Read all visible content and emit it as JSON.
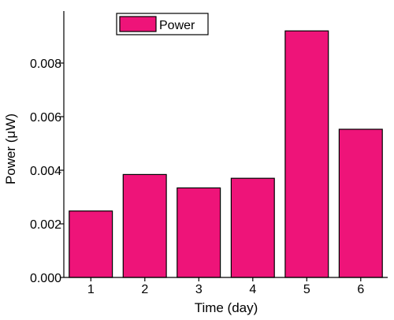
{
  "chart_data": {
    "type": "bar",
    "categories": [
      "1",
      "2",
      "3",
      "4",
      "5",
      "6"
    ],
    "series": [
      {
        "name": "Power",
        "values": [
          0.00248,
          0.00384,
          0.00334,
          0.0037,
          0.0092,
          0.00553
        ]
      }
    ],
    "xlabel": "Time (day)",
    "ylabel": "Power (μW)",
    "ylim": [
      0,
      0.01
    ],
    "yticks": [
      "0.000",
      "0.002",
      "0.004",
      "0.006",
      "0.008"
    ],
    "bar_color": "#ee1479",
    "legend": {
      "placement": "top-left",
      "entries": [
        "Power"
      ]
    },
    "grid": false
  }
}
